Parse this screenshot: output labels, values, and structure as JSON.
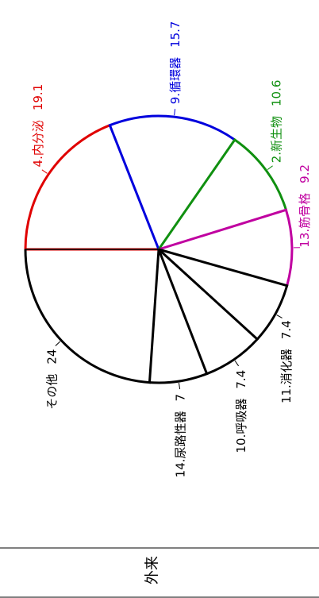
{
  "chart_data": {
    "type": "pie",
    "title": "外来",
    "categories": [
      "4.内分泌",
      "9.循環器",
      "2.新生物",
      "13.筋骨格",
      "11.消化器",
      "10.呼吸器",
      "14.尿路性器",
      "その他"
    ],
    "values": [
      19.1,
      15.7,
      10.6,
      9.2,
      7.4,
      7.4,
      7.0,
      24.0
    ],
    "colors": [
      "#e00000",
      "#0000dd",
      "#109010",
      "#c000a0",
      "#000000",
      "#000000",
      "#000000",
      "#000000"
    ]
  }
}
